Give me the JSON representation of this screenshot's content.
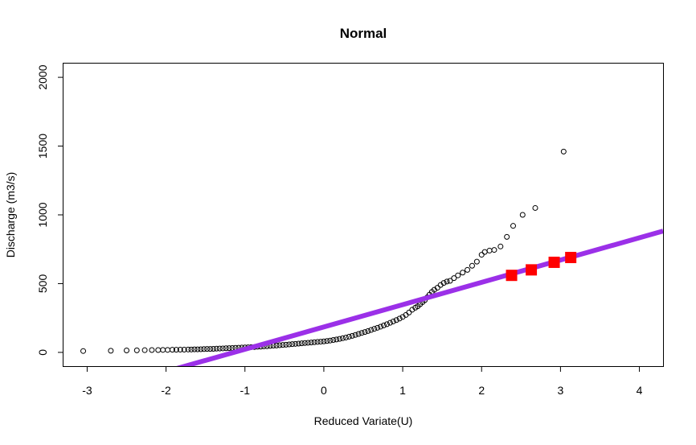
{
  "chart_data": {
    "type": "scatter",
    "title": "Normal",
    "xlabel": "Reduced Variate(U)",
    "ylabel": "Discharge (m3/s)",
    "xlim": [
      -3.3,
      4.3
    ],
    "ylim": [
      -100,
      2100
    ],
    "xticks": [
      -3,
      -2,
      -1,
      0,
      1,
      2,
      3,
      4
    ],
    "xtick_labels": [
      "-3",
      "-2",
      "-1",
      "0",
      "1",
      "2",
      "3",
      "4"
    ],
    "yticks": [
      0,
      500,
      1000,
      1500,
      2000
    ],
    "ytick_labels": [
      "0",
      "500",
      "1000",
      "1500",
      "2000"
    ],
    "grid": false,
    "series": [
      {
        "kind": "observed",
        "marker": "open-circle",
        "color": "#000000",
        "x": [
          -3.05,
          -2.7,
          -2.5,
          -2.37,
          -2.27,
          -2.18,
          -2.1,
          -2.04,
          -1.98,
          -1.92,
          -1.87,
          -1.82,
          -1.77,
          -1.72,
          -1.68,
          -1.64,
          -1.6,
          -1.56,
          -1.52,
          -1.48,
          -1.44,
          -1.4,
          -1.36,
          -1.32,
          -1.28,
          -1.24,
          -1.2,
          -1.16,
          -1.12,
          -1.08,
          -1.04,
          -1.0,
          -0.96,
          -0.92,
          -0.88,
          -0.84,
          -0.8,
          -0.76,
          -0.72,
          -0.68,
          -0.64,
          -0.6,
          -0.56,
          -0.52,
          -0.48,
          -0.44,
          -0.4,
          -0.36,
          -0.32,
          -0.28,
          -0.24,
          -0.2,
          -0.16,
          -0.12,
          -0.08,
          -0.04,
          0.0,
          0.04,
          0.08,
          0.12,
          0.16,
          0.2,
          0.24,
          0.28,
          0.32,
          0.36,
          0.4,
          0.44,
          0.48,
          0.52,
          0.56,
          0.6,
          0.64,
          0.68,
          0.72,
          0.76,
          0.8,
          0.84,
          0.88,
          0.92,
          0.96,
          1.0,
          1.04,
          1.08,
          1.12,
          1.16,
          1.19,
          1.22,
          1.25,
          1.28,
          1.31,
          1.34,
          1.37,
          1.4,
          1.44,
          1.48,
          1.52,
          1.56,
          1.6,
          1.65,
          1.7,
          1.76,
          1.82,
          1.88,
          1.94,
          2.0,
          2.04,
          2.1,
          2.16,
          2.24,
          2.32,
          2.4,
          2.52,
          2.68,
          3.04
        ],
        "y": [
          10,
          12,
          14,
          15,
          16,
          17,
          17,
          18,
          18,
          19,
          19,
          20,
          20,
          21,
          21,
          22,
          22,
          23,
          24,
          25,
          25,
          26,
          27,
          28,
          29,
          30,
          31,
          32,
          33,
          34,
          35,
          36,
          37,
          38,
          39,
          41,
          42,
          44,
          45,
          47,
          49,
          50,
          52,
          54,
          56,
          58,
          60,
          62,
          64,
          66,
          68,
          70,
          72,
          74,
          76,
          78,
          80,
          83,
          86,
          90,
          94,
          98,
          103,
          108,
          114,
          120,
          127,
          134,
          141,
          148,
          155,
          163,
          171,
          179,
          187,
          196,
          205,
          215,
          225,
          235,
          246,
          258,
          272,
          290,
          310,
          325,
          335,
          350,
          365,
          380,
          400,
          420,
          440,
          455,
          470,
          490,
          505,
          515,
          520,
          540,
          560,
          580,
          600,
          630,
          660,
          710,
          730,
          740,
          745,
          770,
          840,
          920,
          1000,
          1050,
          1460
        ]
      },
      {
        "kind": "fitted",
        "marker": "line",
        "color": "#9b30e8",
        "x": [
          -3.3,
          4.3
        ],
        "y": [
          -350,
          882
        ]
      },
      {
        "kind": "design",
        "marker": "filled-square",
        "color": "#ff0000",
        "x": [
          2.38,
          2.63,
          2.92,
          3.13
        ],
        "y": [
          560,
          600,
          655,
          690
        ]
      }
    ]
  }
}
